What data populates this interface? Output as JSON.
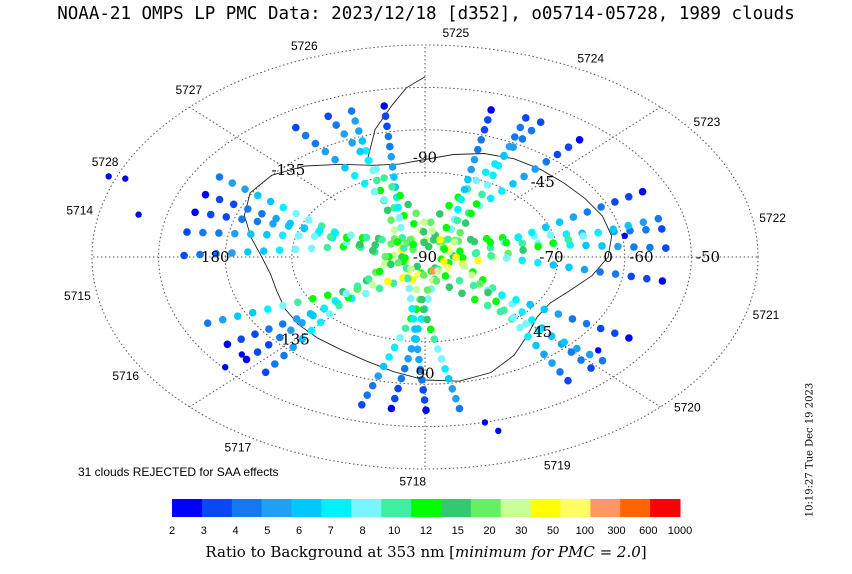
{
  "title": "NOAA-21 OMPS LP PMC Data: 2023/12/18 [d352], o05714-05728, 1989 clouds",
  "rejected_note": "31 clouds REJECTED for SAA effects",
  "timestamp": "10:19:27 Tue Dec 19 2023",
  "colorbar": {
    "title_prefix": "Ratio to Background at 353 nm [",
    "title_italic": "minimum for PMC = 2.0",
    "title_suffix": "]",
    "ticks": [
      "2",
      "3",
      "4",
      "5",
      "6",
      "7",
      "8",
      "10",
      "12",
      "15",
      "20",
      "30",
      "50",
      "100",
      "300",
      "600",
      "1000"
    ],
    "colors": [
      "#0000ff",
      "#0a47f5",
      "#1478f0",
      "#1ea0f5",
      "#00c8ff",
      "#00f0ff",
      "#78f5ff",
      "#3cf0a0",
      "#00ff00",
      "#32c86e",
      "#64f064",
      "#c8ff96",
      "#ffff00",
      "#ffff64",
      "#ff9664",
      "#ff6400",
      "#ff0000"
    ]
  },
  "chart_data": {
    "type": "scatter",
    "projection": "polar-stereographic-south",
    "cloud_count": 1989,
    "rejected_count": 31,
    "date": "2023/12/18",
    "day_of_year": "d352",
    "orbits": "o05714-05728",
    "inner_labels": [
      {
        "text": "-90",
        "angle": 90,
        "radius": 0.47
      },
      {
        "text": "-135",
        "angle": 135,
        "radius": 0.58
      },
      {
        "text": "-45",
        "angle": 45,
        "radius": 0.5
      },
      {
        "text": "180",
        "angle": 180,
        "radius": 0.63
      },
      {
        "text": "-90",
        "angle": 0,
        "radius": 0
      },
      {
        "text": "0",
        "angle": 0,
        "radius": 0.55
      },
      {
        "text": "-60",
        "angle": 0,
        "radius": 0.65
      },
      {
        "text": "-50",
        "angle": 0,
        "radius": 0.85
      },
      {
        "text": "135",
        "angle": 225,
        "radius": 0.55
      },
      {
        "text": "45",
        "angle": 315,
        "radius": 0.5
      },
      {
        "text": "90",
        "angle": 270,
        "radius": 0.55
      },
      {
        "text": "-70",
        "angle": 0,
        "radius": 0.38
      }
    ],
    "orbit_labels": [
      {
        "text": "5714",
        "angle": 168
      },
      {
        "text": "5715",
        "angle": 190
      },
      {
        "text": "5716",
        "angle": 212
      },
      {
        "text": "5717",
        "angle": 238
      },
      {
        "text": "5718",
        "angle": 268
      },
      {
        "text": "5719",
        "angle": 292
      },
      {
        "text": "5720",
        "angle": 318
      },
      {
        "text": "5721",
        "angle": 345
      },
      {
        "text": "5722",
        "angle": 10
      },
      {
        "text": "5723",
        "angle": 37
      },
      {
        "text": "5724",
        "angle": 62
      },
      {
        "text": "5725",
        "angle": 85
      },
      {
        "text": "5726",
        "angle": 110
      },
      {
        "text": "5727",
        "angle": 132
      },
      {
        "text": "5728",
        "angle": 155
      }
    ],
    "tracks": [
      {
        "angle": 5,
        "offset": 0.07,
        "minLevel": 1,
        "maxLevel": 11
      },
      {
        "angle": 30,
        "offset": -0.06,
        "minLevel": 0,
        "maxLevel": 9
      },
      {
        "angle": 55,
        "offset": 0.08,
        "minLevel": 1,
        "maxLevel": 12
      },
      {
        "angle": 78,
        "offset": -0.05,
        "minLevel": 0,
        "maxLevel": 8
      },
      {
        "angle": 103,
        "offset": 0.06,
        "minLevel": 2,
        "maxLevel": 13
      },
      {
        "angle": 128,
        "offset": -0.07,
        "minLevel": 1,
        "maxLevel": 10
      },
      {
        "angle": 152,
        "offset": 0.05,
        "minLevel": 0,
        "maxLevel": 9
      },
      {
        "angle": 177,
        "offset": -0.08,
        "minLevel": 1,
        "maxLevel": 11
      },
      {
        "angle": 200,
        "offset": 0.07,
        "minLevel": 2,
        "maxLevel": 14
      },
      {
        "angle": 226,
        "offset": -0.05,
        "minLevel": 0,
        "maxLevel": 10
      },
      {
        "angle": 250,
        "offset": 0.06,
        "minLevel": 1,
        "maxLevel": 12
      },
      {
        "angle": 275,
        "offset": -0.06,
        "minLevel": 0,
        "maxLevel": 8
      },
      {
        "angle": 300,
        "offset": 0.08,
        "minLevel": 1,
        "maxLevel": 13
      },
      {
        "angle": 323,
        "offset": -0.07,
        "minLevel": 2,
        "maxLevel": 11
      },
      {
        "angle": 347,
        "offset": 0.05,
        "minLevel": 0,
        "maxLevel": 9
      }
    ],
    "scattered_points": [
      {
        "x": -0.95,
        "y": 0.38
      },
      {
        "x": -0.9,
        "y": 0.37
      },
      {
        "x": -0.86,
        "y": 0.2
      },
      {
        "x": -0.6,
        "y": -0.52
      },
      {
        "x": -0.55,
        "y": -0.46
      },
      {
        "x": 0.18,
        "y": -0.78
      },
      {
        "x": 0.22,
        "y": -0.82
      },
      {
        "x": 0.6,
        "y": 0.1
      },
      {
        "x": 0.52,
        "y": -0.44
      }
    ]
  }
}
